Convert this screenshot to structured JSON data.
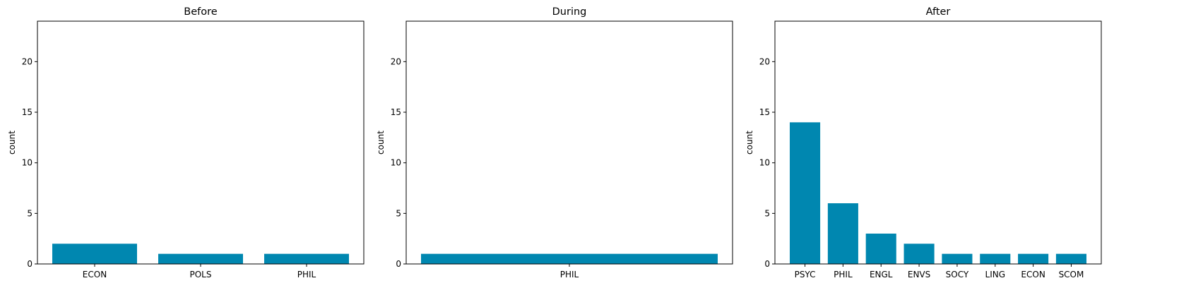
{
  "chart_data": [
    {
      "type": "bar",
      "title": "Before",
      "xlabel": "",
      "ylabel": "count",
      "ylim": [
        0,
        24
      ],
      "yticks": [
        0,
        5,
        10,
        15,
        20
      ],
      "categories": [
        "ECON",
        "POLS",
        "PHIL"
      ],
      "values": [
        2,
        1,
        1
      ],
      "color": "#0087b0",
      "grid": false
    },
    {
      "type": "bar",
      "title": "During",
      "xlabel": "",
      "ylabel": "count",
      "ylim": [
        0,
        24
      ],
      "yticks": [
        0,
        5,
        10,
        15,
        20
      ],
      "categories": [
        "PHIL"
      ],
      "values": [
        1
      ],
      "color": "#0087b0",
      "grid": false
    },
    {
      "type": "bar",
      "title": "After",
      "xlabel": "",
      "ylabel": "count",
      "ylim": [
        0,
        24
      ],
      "yticks": [
        0,
        5,
        10,
        15,
        20
      ],
      "categories": [
        "PSYC",
        "PHIL",
        "ENGL",
        "ENVS",
        "SOCY",
        "LING",
        "ECON",
        "SCOM"
      ],
      "values": [
        14,
        6,
        3,
        2,
        1,
        1,
        1,
        1
      ],
      "color": "#0087b0",
      "grid": false
    }
  ]
}
